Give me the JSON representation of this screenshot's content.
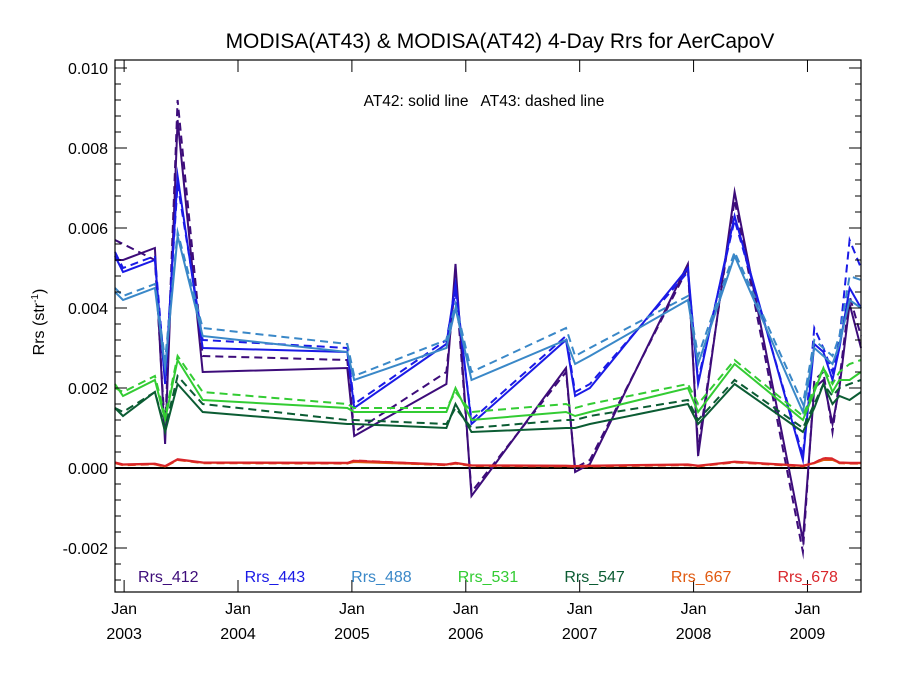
{
  "chart_data": {
    "type": "line",
    "title": "MODISA(AT43) & MODISA(AT42) 4-Day Rrs for AerCapoV",
    "ylabel_main": "Rrs (str",
    "ylabel_sup": "-1",
    "ylabel_close": ")",
    "annotation": "AT42: solid line   AT43: dashed line",
    "ylim": [
      -0.0031,
      0.0102
    ],
    "xlim": [
      2002.92,
      2009.47
    ],
    "y_ticks": [
      {
        "v": -0.002,
        "label": "-0.002"
      },
      {
        "v": 0.0,
        "label": "0.000"
      },
      {
        "v": 0.002,
        "label": "0.002"
      },
      {
        "v": 0.004,
        "label": "0.004"
      },
      {
        "v": 0.006,
        "label": "0.006"
      },
      {
        "v": 0.008,
        "label": "0.008"
      },
      {
        "v": 0.01,
        "label": "0.010"
      }
    ],
    "x_ticks": [
      {
        "v": 2003.0,
        "month": "Jan",
        "year": "2003"
      },
      {
        "v": 2004.0,
        "month": "Jan",
        "year": "2004"
      },
      {
        "v": 2005.0,
        "month": "Jan",
        "year": "2005"
      },
      {
        "v": 2006.0,
        "month": "Jan",
        "year": "2006"
      },
      {
        "v": 2007.0,
        "month": "Jan",
        "year": "2007"
      },
      {
        "v": 2008.0,
        "month": "Jan",
        "year": "2008"
      },
      {
        "v": 2009.0,
        "month": "Jan",
        "year": "2009"
      }
    ],
    "x": [
      2002.92,
      2002.99,
      2003.27,
      2003.36,
      2003.47,
      2003.69,
      2004.96,
      2005.02,
      2005.83,
      2005.91,
      2006.05,
      2006.88,
      2006.96,
      2007.09,
      2007.95,
      2008.04,
      2008.36,
      2008.96,
      2009.06,
      2009.14,
      2009.22,
      2009.28,
      2009.37,
      2009.47
    ],
    "series": [
      {
        "name": "Rrs_412",
        "color": "#3d0c7a",
        "solid": [
          0.0052,
          0.0052,
          0.0055,
          0.0006,
          0.0087,
          0.0024,
          0.0025,
          0.0008,
          0.0021,
          0.0051,
          -0.0007,
          0.0025,
          -0.0001,
          0.0001,
          0.0051,
          0.0003,
          0.0069,
          -0.0018,
          0.002,
          0.0022,
          0.0011,
          0.002,
          0.0041,
          0.003
        ],
        "dashed": [
          0.0057,
          0.0056,
          0.0052,
          0.0009,
          0.0092,
          0.0028,
          0.0027,
          0.0009,
          0.0024,
          0.0047,
          -0.0006,
          0.0024,
          0.0,
          0.0002,
          0.005,
          0.0005,
          0.0067,
          -0.0021,
          0.0022,
          0.0024,
          0.0009,
          0.0022,
          0.0043,
          0.0033
        ]
      },
      {
        "name": "Rrs_443",
        "color": "#1a1ae6",
        "solid": [
          0.0053,
          0.0049,
          0.0052,
          0.0021,
          0.0073,
          0.003,
          0.0029,
          0.0015,
          0.0031,
          0.0046,
          0.0011,
          0.0032,
          0.0018,
          0.002,
          0.005,
          0.0021,
          0.0063,
          0.0002,
          0.0031,
          0.0029,
          0.0022,
          0.003,
          0.0045,
          0.004
        ],
        "dashed": [
          0.0054,
          0.005,
          0.0053,
          0.0023,
          0.0071,
          0.0032,
          0.003,
          0.0016,
          0.0032,
          0.0044,
          0.0012,
          0.0033,
          0.0019,
          0.0021,
          0.0049,
          0.0022,
          0.0062,
          0.0003,
          0.0035,
          0.003,
          0.0024,
          0.0032,
          0.0057,
          0.005
        ]
      },
      {
        "name": "Rrs_488",
        "color": "#3a88c8",
        "solid": [
          0.0044,
          0.0042,
          0.0045,
          0.0025,
          0.0058,
          0.0033,
          0.0029,
          0.0022,
          0.003,
          0.004,
          0.0022,
          0.0032,
          0.0026,
          0.0028,
          0.0042,
          0.0026,
          0.0053,
          0.0014,
          0.003,
          0.0028,
          0.0026,
          0.0031,
          0.0042,
          0.004
        ],
        "dashed": [
          0.0045,
          0.0043,
          0.0046,
          0.0027,
          0.0059,
          0.0035,
          0.0031,
          0.0023,
          0.0032,
          0.0041,
          0.0024,
          0.0035,
          0.0028,
          0.003,
          0.0043,
          0.0028,
          0.0054,
          0.0016,
          0.0032,
          0.003,
          0.0028,
          0.0033,
          0.0048,
          0.0047
        ]
      },
      {
        "name": "Rrs_531",
        "color": "#33cc33",
        "solid": [
          0.0021,
          0.0018,
          0.0022,
          0.0012,
          0.0027,
          0.0017,
          0.0015,
          0.0014,
          0.0014,
          0.002,
          0.0012,
          0.0014,
          0.0013,
          0.0014,
          0.002,
          0.0014,
          0.0026,
          0.0012,
          0.0019,
          0.0025,
          0.0019,
          0.0022,
          0.0022,
          0.0024
        ],
        "dashed": [
          0.002,
          0.0019,
          0.0023,
          0.0013,
          0.0028,
          0.0019,
          0.0016,
          0.0015,
          0.0015,
          0.0019,
          0.0014,
          0.0016,
          0.0015,
          0.0016,
          0.0021,
          0.0016,
          0.0027,
          0.0013,
          0.002,
          0.0025,
          0.0021,
          0.0024,
          0.0026,
          0.0027
        ]
      },
      {
        "name": "Rrs_547",
        "color": "#0b5c33",
        "solid": [
          0.0015,
          0.0013,
          0.0019,
          0.0009,
          0.0021,
          0.0014,
          0.0011,
          0.0011,
          0.001,
          0.0016,
          0.0009,
          0.001,
          0.001,
          0.0011,
          0.0016,
          0.0011,
          0.0021,
          0.0009,
          0.0015,
          0.0021,
          0.0016,
          0.0018,
          0.0017,
          0.0019
        ],
        "dashed": [
          0.0015,
          0.0014,
          0.0019,
          0.001,
          0.0023,
          0.0016,
          0.0012,
          0.0012,
          0.0011,
          0.0015,
          0.001,
          0.0012,
          0.0012,
          0.0013,
          0.0017,
          0.0012,
          0.0022,
          0.001,
          0.0016,
          0.0021,
          0.0018,
          0.002,
          0.0021,
          0.0022
        ]
      },
      {
        "name": "Rrs_667",
        "color": "#e05a10",
        "solid": [
          0.00013,
          8e-05,
          0.0001,
          4e-05,
          0.00021,
          0.00013,
          0.00012,
          0.00015,
          8e-05,
          0.00012,
          6e-05,
          5e-05,
          4e-05,
          5e-05,
          8e-05,
          5e-05,
          0.00015,
          5e-05,
          0.00012,
          0.0002,
          0.0002,
          0.00013,
          0.00012,
          0.00012
        ],
        "dashed": [
          0.00012,
          7e-05,
          9e-05,
          3e-05,
          0.0002,
          0.00012,
          0.00011,
          0.00016,
          7e-05,
          0.00011,
          5e-05,
          4e-05,
          3e-05,
          4e-05,
          7e-05,
          4e-05,
          0.00014,
          4e-05,
          0.00012,
          0.00022,
          0.00022,
          0.00012,
          0.00011,
          0.00011
        ]
      },
      {
        "name": "Rrs_678",
        "color": "#d9262b",
        "solid": [
          0.00014,
          9e-05,
          0.00011,
          5e-05,
          0.00022,
          0.00014,
          0.00013,
          0.00018,
          9e-05,
          0.00013,
          7e-05,
          6e-05,
          5e-05,
          6e-05,
          9e-05,
          6e-05,
          0.00016,
          6e-05,
          0.00013,
          0.00024,
          0.00023,
          0.00014,
          0.00013,
          0.00013
        ],
        "dashed": [
          0.00013,
          8e-05,
          0.0001,
          4e-05,
          0.00021,
          0.00013,
          0.00012,
          0.00019,
          8e-05,
          0.00012,
          6e-05,
          5e-05,
          4e-05,
          5e-05,
          8e-05,
          5e-05,
          0.00015,
          5e-05,
          0.00013,
          0.00025,
          0.00024,
          0.00013,
          0.00012,
          0.00012
        ]
      }
    ],
    "zero_line": 0.0,
    "grid": false,
    "legend_position": "bottom inside plot, horizontal"
  }
}
